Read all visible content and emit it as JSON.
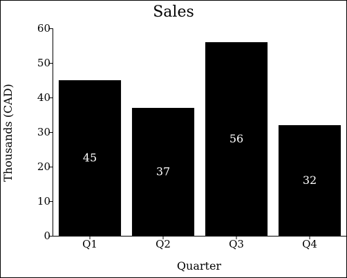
{
  "chart_data": {
    "type": "bar",
    "title": "Sales",
    "xlabel": "Quarter",
    "ylabel": "Thousands (CAD)",
    "categories": [
      "Q1",
      "Q2",
      "Q3",
      "Q4"
    ],
    "values": [
      45,
      37,
      56,
      32
    ],
    "data_labels": [
      "45",
      "37",
      "56",
      "32"
    ],
    "ylim": [
      0,
      60
    ],
    "yticks": [
      0,
      10,
      20,
      30,
      40,
      50,
      60
    ],
    "grid": false,
    "bar_color": "#000000",
    "label_color": "#ffffff"
  }
}
